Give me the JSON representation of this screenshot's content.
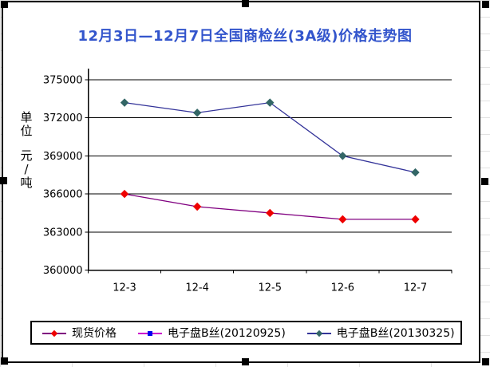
{
  "title": {
    "text": "12月3日—12月7日全国商检丝(3A级)价格走势图",
    "color": "#3355CC"
  },
  "y_axis": {
    "unit_chars": [
      "单",
      "位",
      "元",
      "/",
      "吨"
    ]
  },
  "chart_data": {
    "type": "line",
    "title": "12月3日—12月7日全国商检丝(3A级)价格走势图",
    "categories": [
      "12-3",
      "12-4",
      "12-5",
      "12-6",
      "12-7"
    ],
    "series": [
      {
        "name": "现货价格",
        "values": [
          366000,
          365000,
          364500,
          364000,
          364000
        ],
        "line_color": "#800080",
        "marker": "diamond",
        "marker_color": "#EE0000"
      },
      {
        "name": "电子盘B丝(20120925)",
        "values": null,
        "line_color": "#CC00CC",
        "marker": "square",
        "marker_color": "#0000EE"
      },
      {
        "name": "电子盘B丝(20130325)",
        "values": [
          373200,
          372400,
          373200,
          369000,
          367700
        ],
        "line_color": "#333399",
        "marker": "diamond",
        "marker_color": "#336666"
      }
    ],
    "xlabel": "",
    "ylabel": "单位 元/吨",
    "ylim": [
      360000,
      375000
    ],
    "ytick_step": 3000,
    "grid": true,
    "legend_position": "bottom",
    "axis_color": "#000000"
  }
}
